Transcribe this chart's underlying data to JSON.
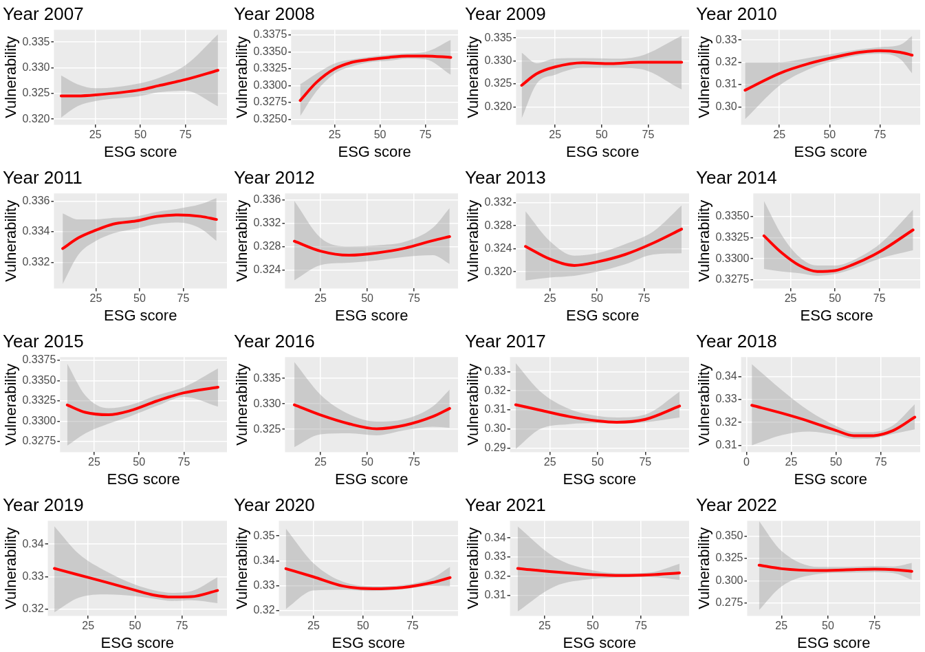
{
  "chart_data": [
    {
      "type": "line",
      "title": "Year 2007",
      "xlabel": "ESG score",
      "ylabel": "Vulnerability",
      "xlim": [
        2,
        98
      ],
      "xticks": [
        25,
        50,
        75
      ],
      "ylim": [
        0.3189,
        0.3374
      ],
      "yticks": [
        {
          "value": 0.32,
          "label": "0.320"
        },
        0.325,
        {
          "value": 0.33,
          "label": "0.330"
        },
        0.335
      ],
      "grid": true,
      "series": [
        {
          "color": "#ff0000",
          "x": [
            6,
            15,
            25,
            50,
            60,
            75,
            93
          ],
          "values": [
            0.3245,
            0.3245,
            0.3247,
            0.3257,
            0.3265,
            0.3277,
            0.3295
          ],
          "lower": [
            0.3203,
            0.3225,
            0.3235,
            0.3245,
            0.3252,
            0.3255,
            0.3225
          ],
          "upper": [
            0.3285,
            0.3268,
            0.326,
            0.327,
            0.328,
            0.3305,
            0.3365
          ]
        }
      ]
    },
    {
      "type": "line",
      "title": "Year 2008",
      "xlabel": "ESG score",
      "ylabel": "Vulnerability",
      "xlim": [
        1,
        93
      ],
      "xticks": [
        25,
        50,
        75
      ],
      "ylim": [
        0.3242,
        0.3383
      ],
      "yticks": [
        {
          "value": 0.325,
          "label": "0.3250"
        },
        0.3275,
        {
          "value": 0.33,
          "label": "0.3300"
        },
        0.3325,
        {
          "value": 0.335,
          "label": "0.3350"
        },
        0.3375
      ],
      "grid": true,
      "series": [
        {
          "color": "#ff0000",
          "x": [
            6,
            15,
            25,
            35,
            45,
            55,
            65,
            75,
            89
          ],
          "values": [
            0.3278,
            0.3305,
            0.3325,
            0.3335,
            0.3339,
            0.3342,
            0.3344,
            0.3344,
            0.3342
          ],
          "lower": [
            0.3255,
            0.3292,
            0.3318,
            0.3329,
            0.3335,
            0.3337,
            0.334,
            0.3339,
            0.3316
          ],
          "upper": [
            0.3302,
            0.3318,
            0.3333,
            0.3339,
            0.3343,
            0.3346,
            0.3348,
            0.335,
            0.3368
          ]
        }
      ]
    },
    {
      "type": "line",
      "title": "Year 2009",
      "xlabel": "ESG score",
      "ylabel": "Vulnerability",
      "xlim": [
        4,
        97
      ],
      "xticks": [
        25,
        50,
        75
      ],
      "ylim": [
        0.3161,
        0.3368
      ],
      "yticks": [
        {
          "value": 0.32,
          "label": "0.320"
        },
        0.325,
        {
          "value": 0.33,
          "label": "0.330"
        },
        0.335
      ],
      "grid": true,
      "series": [
        {
          "color": "#ff0000",
          "x": [
            7,
            15,
            25,
            40,
            55,
            70,
            93
          ],
          "values": [
            0.3247,
            0.3272,
            0.3287,
            0.3296,
            0.3294,
            0.3297,
            0.3297
          ],
          "lower": [
            0.3175,
            0.325,
            0.327,
            0.3285,
            0.3285,
            0.3283,
            0.3238
          ],
          "upper": [
            0.3318,
            0.3295,
            0.3305,
            0.3306,
            0.3305,
            0.331,
            0.3355
          ]
        }
      ]
    },
    {
      "type": "line",
      "title": "Year 2010",
      "xlabel": "ESG score",
      "ylabel": "Vulnerability",
      "xlim": [
        6,
        95
      ],
      "xticks": [
        25,
        50,
        75
      ],
      "ylim": [
        0.292,
        0.3346
      ],
      "yticks": [
        {
          "value": 0.3,
          "label": "0.30"
        },
        0.31,
        0.32,
        0.33
      ],
      "grid": true,
      "series": [
        {
          "color": "#ff0000",
          "x": [
            8,
            25,
            40,
            55,
            65,
            75,
            85,
            91
          ],
          "values": [
            0.3075,
            0.315,
            0.3195,
            0.3228,
            0.3245,
            0.3252,
            0.3245,
            0.3232
          ],
          "lower": [
            0.2945,
            0.3095,
            0.317,
            0.3213,
            0.3232,
            0.3238,
            0.3215,
            0.315
          ],
          "upper": [
            0.32,
            0.32,
            0.322,
            0.3243,
            0.3258,
            0.3268,
            0.3278,
            0.3318
          ]
        }
      ]
    },
    {
      "type": "line",
      "title": "Year 2011",
      "xlabel": "ESG score",
      "ylabel": "Vulnerability",
      "xlim": [
        1,
        100
      ],
      "xticks": [
        25,
        50,
        75
      ],
      "ylim": [
        0.3303,
        0.3365
      ],
      "yticks": [
        0.332,
        0.334,
        0.336
      ],
      "grid": true,
      "series": [
        {
          "color": "#ff0000",
          "x": [
            6,
            15,
            25,
            35,
            48,
            60,
            72,
            85,
            94
          ],
          "values": [
            0.3329,
            0.3336,
            0.3341,
            0.3345,
            0.3347,
            0.335,
            0.3351,
            0.335,
            0.3348
          ],
          "lower": [
            0.3306,
            0.3325,
            0.3334,
            0.3339,
            0.3342,
            0.3345,
            0.3346,
            0.3342,
            0.3334
          ],
          "upper": [
            0.3352,
            0.3348,
            0.3348,
            0.3349,
            0.335,
            0.3353,
            0.3355,
            0.3358,
            0.3362
          ]
        }
      ]
    },
    {
      "type": "line",
      "title": "Year 2012",
      "xlabel": "ESG score",
      "ylabel": "Vulnerability",
      "xlim": [
        6,
        98.5
      ],
      "xticks": [
        25,
        50,
        75
      ],
      "ylim": [
        0.3208,
        0.3371
      ],
      "yticks": [
        0.324,
        0.328,
        0.332,
        0.336
      ],
      "grid": true,
      "series": [
        {
          "color": "#ff0000",
          "x": [
            11,
            25,
            40,
            55,
            70,
            85,
            94
          ],
          "values": [
            0.3289,
            0.3272,
            0.3265,
            0.3269,
            0.3277,
            0.329,
            0.3297
          ],
          "lower": [
            0.3222,
            0.3248,
            0.3252,
            0.3256,
            0.3262,
            0.3265,
            0.325
          ],
          "upper": [
            0.3358,
            0.3295,
            0.328,
            0.3282,
            0.3288,
            0.3312,
            0.3346
          ]
        }
      ]
    },
    {
      "type": "line",
      "title": "Year 2013",
      "xlabel": "ESG score",
      "ylabel": "Vulnerability",
      "xlim": [
        7,
        99
      ],
      "xticks": [
        25,
        50,
        75
      ],
      "ylim": [
        0.3171,
        0.3336
      ],
      "yticks": [
        {
          "value": 0.32,
          "label": "0.320"
        },
        0.324,
        0.328,
        0.332
      ],
      "grid": true,
      "series": [
        {
          "color": "#ff0000",
          "x": [
            12,
            25,
            38,
            50,
            65,
            80,
            95
          ],
          "values": [
            0.3244,
            0.3222,
            0.3211,
            0.3217,
            0.323,
            0.325,
            0.3274
          ],
          "lower": [
            0.3185,
            0.319,
            0.3193,
            0.32,
            0.3213,
            0.323,
            0.3232
          ],
          "upper": [
            0.3305,
            0.3253,
            0.3228,
            0.3232,
            0.3248,
            0.327,
            0.3315
          ]
        }
      ]
    },
    {
      "type": "line",
      "title": "Year 2014",
      "xlabel": "ESG score",
      "ylabel": "Vulnerability",
      "xlim": [
        4,
        98
      ],
      "xticks": [
        25,
        50,
        75
      ],
      "ylim": [
        0.3265,
        0.3377
      ],
      "yticks": [
        0.3275,
        {
          "value": 0.33,
          "label": "0.3300"
        },
        0.3325,
        {
          "value": 0.335,
          "label": "0.3350"
        }
      ],
      "grid": true,
      "series": [
        {
          "color": "#ff0000",
          "x": [
            10,
            20,
            30,
            40,
            50,
            60,
            75,
            94
          ],
          "values": [
            0.3327,
            0.3307,
            0.3292,
            0.3285,
            0.3286,
            0.3293,
            0.3308,
            0.3334
          ],
          "lower": [
            0.3288,
            0.3285,
            0.3283,
            0.328,
            0.3282,
            0.3288,
            0.33,
            0.331
          ],
          "upper": [
            0.3368,
            0.3328,
            0.3302,
            0.3292,
            0.3292,
            0.3298,
            0.3317,
            0.3358
          ]
        }
      ]
    },
    {
      "type": "line",
      "title": "Year 2015",
      "xlabel": "ESG score",
      "ylabel": "Vulnerability",
      "xlim": [
        6,
        99
      ],
      "xticks": [
        25,
        50,
        75
      ],
      "ylim": [
        0.3262,
        0.3379
      ],
      "yticks": [
        0.3275,
        {
          "value": 0.33,
          "label": "0.3300"
        },
        0.3325,
        {
          "value": 0.335,
          "label": "0.3350"
        },
        0.3375
      ],
      "grid": true,
      "series": [
        {
          "color": "#ff0000",
          "x": [
            10,
            20,
            33,
            45,
            60,
            75,
            94
          ],
          "values": [
            0.332,
            0.3311,
            0.3308,
            0.3313,
            0.3325,
            0.3335,
            0.3342
          ],
          "lower": [
            0.327,
            0.3285,
            0.3297,
            0.3306,
            0.3319,
            0.333,
            0.3318
          ],
          "upper": [
            0.3371,
            0.3332,
            0.3316,
            0.332,
            0.3332,
            0.3342,
            0.3365
          ]
        }
      ]
    },
    {
      "type": "line",
      "title": "Year 2016",
      "xlabel": "ESG score",
      "ylabel": "Vulnerability",
      "xlim": [
        6,
        98.5
      ],
      "xticks": [
        25,
        50,
        75
      ],
      "ylim": [
        0.3205,
        0.3392
      ],
      "yticks": [
        0.325,
        {
          "value": 0.33,
          "label": "0.330"
        },
        0.335
      ],
      "grid": true,
      "series": [
        {
          "color": "#ff0000",
          "x": [
            11,
            25,
            40,
            55,
            70,
            85,
            94
          ],
          "values": [
            0.3298,
            0.3278,
            0.3261,
            0.3251,
            0.3258,
            0.3275,
            0.3291
          ],
          "lower": [
            0.3215,
            0.324,
            0.3242,
            0.3238,
            0.3248,
            0.3255,
            0.3253
          ],
          "upper": [
            0.3382,
            0.3318,
            0.328,
            0.3265,
            0.327,
            0.3295,
            0.3328
          ]
        }
      ]
    },
    {
      "type": "line",
      "title": "Year 2017",
      "xlabel": "ESG score",
      "ylabel": "Vulnerability",
      "xlim": [
        4,
        98
      ],
      "xticks": [
        25,
        50,
        75
      ],
      "ylim": [
        0.2878,
        0.3377
      ],
      "yticks": [
        0.29,
        {
          "value": 0.3,
          "label": "0.30"
        },
        0.31,
        0.32,
        0.33
      ],
      "grid": true,
      "series": [
        {
          "color": "#ff0000",
          "x": [
            7,
            20,
            35,
            50,
            60,
            75,
            93
          ],
          "values": [
            0.3127,
            0.3098,
            0.3065,
            0.3042,
            0.3035,
            0.305,
            0.312
          ],
          "lower": [
            0.2895,
            0.3,
            0.3025,
            0.303,
            0.3028,
            0.3035,
            0.306
          ],
          "upper": [
            0.3345,
            0.3195,
            0.3105,
            0.3068,
            0.306,
            0.3075,
            0.3195
          ]
        }
      ]
    },
    {
      "type": "line",
      "title": "Year 2018",
      "xlabel": "ESG score",
      "ylabel": "Vulnerability",
      "xlim": [
        -3,
        97
      ],
      "xticks": [
        0,
        25,
        50,
        75
      ],
      "ylim": [
        0.307,
        0.3486
      ],
      "yticks": [
        0.31,
        0.32,
        0.33,
        0.34
      ],
      "grid": true,
      "series": [
        {
          "color": "#ff0000",
          "x": [
            3,
            20,
            35,
            50,
            60,
            70,
            82,
            94
          ],
          "values": [
            0.3275,
            0.324,
            0.3205,
            0.3165,
            0.3142,
            0.3142,
            0.3165,
            0.3223
          ],
          "lower": [
            0.31,
            0.3145,
            0.316,
            0.3145,
            0.3128,
            0.313,
            0.315,
            0.317
          ],
          "upper": [
            0.3455,
            0.334,
            0.325,
            0.3185,
            0.3158,
            0.3158,
            0.3188,
            0.328
          ]
        }
      ]
    },
    {
      "type": "line",
      "title": "Year 2019",
      "xlabel": "ESG score",
      "ylabel": "Vulnerability",
      "xlim": [
        3.5,
        99
      ],
      "xticks": [
        25,
        50,
        75
      ],
      "ylim": [
        0.3179,
        0.3472
      ],
      "yticks": [
        0.32,
        0.33,
        0.34
      ],
      "grid": true,
      "series": [
        {
          "color": "#ff0000",
          "x": [
            7,
            20,
            35,
            50,
            60,
            70,
            80,
            94
          ],
          "values": [
            0.3325,
            0.3305,
            0.3282,
            0.3258,
            0.3243,
            0.3237,
            0.3238,
            0.3257
          ],
          "lower": [
            0.319,
            0.3235,
            0.3245,
            0.324,
            0.3232,
            0.3225,
            0.3227,
            0.3218
          ],
          "upper": [
            0.3455,
            0.337,
            0.3315,
            0.3275,
            0.3258,
            0.325,
            0.3255,
            0.3298
          ]
        }
      ]
    },
    {
      "type": "line",
      "title": "Year 2020",
      "xlabel": "ESG score",
      "ylabel": "Vulnerability",
      "xlim": [
        7.5,
        98
      ],
      "xticks": [
        25,
        50,
        75
      ],
      "ylim": [
        0.3178,
        0.3561
      ],
      "yticks": [
        0.32,
        0.33,
        0.34,
        0.35
      ],
      "grid": true,
      "series": [
        {
          "color": "#ff0000",
          "x": [
            11,
            25,
            40,
            55,
            70,
            85,
            94
          ],
          "values": [
            0.3368,
            0.3335,
            0.3298,
            0.3287,
            0.3292,
            0.3312,
            0.3332
          ],
          "lower": [
            0.3205,
            0.328,
            0.3283,
            0.3278,
            0.3285,
            0.3298,
            0.3297
          ],
          "upper": [
            0.353,
            0.339,
            0.3315,
            0.3298,
            0.3302,
            0.333,
            0.3375
          ]
        }
      ]
    },
    {
      "type": "line",
      "title": "Year 2021",
      "xlabel": "ESG score",
      "ylabel": "Vulnerability",
      "xlim": [
        7,
        100
      ],
      "xticks": [
        25,
        50,
        75
      ],
      "ylim": [
        0.2992,
        0.349
      ],
      "yticks": [
        0.31,
        0.32,
        0.33,
        0.34
      ],
      "grid": true,
      "series": [
        {
          "color": "#ff0000",
          "x": [
            11,
            30,
            50,
            65,
            80,
            95
          ],
          "values": [
            0.324,
            0.3222,
            0.3208,
            0.3203,
            0.3207,
            0.3217
          ],
          "lower": [
            0.3015,
            0.3145,
            0.3185,
            0.3193,
            0.3195,
            0.318
          ],
          "upper": [
            0.346,
            0.33,
            0.323,
            0.3215,
            0.322,
            0.3265
          ]
        }
      ]
    },
    {
      "type": "line",
      "title": "Year 2022",
      "xlabel": "ESG score",
      "ylabel": "Vulnerability",
      "xlim": [
        6.6,
        99.5
      ],
      "xticks": [
        25,
        50,
        75
      ],
      "ylim": [
        0.2604,
        0.3675
      ],
      "yticks": [
        0.275,
        {
          "value": 0.3,
          "label": "0.300"
        },
        0.325,
        {
          "value": 0.35,
          "label": "0.350"
        }
      ],
      "grid": true,
      "series": [
        {
          "color": "#ff0000",
          "x": [
            13,
            25,
            45,
            60,
            75,
            85,
            95
          ],
          "values": [
            0.3175,
            0.3135,
            0.3115,
            0.3122,
            0.313,
            0.3125,
            0.3105
          ],
          "lower": [
            0.267,
            0.2935,
            0.3075,
            0.309,
            0.3095,
            0.3085,
            0.301
          ],
          "upper": [
            0.367,
            0.3335,
            0.3155,
            0.3155,
            0.3165,
            0.316,
            0.32
          ]
        }
      ]
    }
  ]
}
